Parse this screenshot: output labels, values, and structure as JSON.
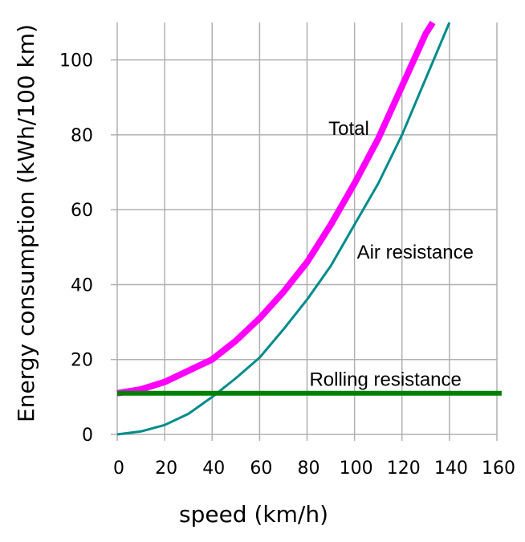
{
  "chart_data": {
    "type": "line",
    "xlabel": "speed (km/h)",
    "ylabel": "Energy consumption (kWh/100 km)",
    "xlim": [
      0,
      160
    ],
    "ylim": [
      0,
      110
    ],
    "grid": true,
    "x_ticks": [
      "0",
      "20",
      "40",
      "60",
      "80",
      "100",
      "120",
      "140",
      "160"
    ],
    "y_ticks": [
      "0",
      "20",
      "40",
      "60",
      "80",
      "100"
    ],
    "series": [
      {
        "name": "Total",
        "color": "#ff00ff",
        "x": [
          0,
          10,
          20,
          30,
          40,
          50,
          60,
          70,
          80,
          90,
          100,
          110,
          120,
          130,
          133
        ],
        "y": [
          11,
          12,
          14,
          17,
          20,
          25,
          31,
          38,
          46,
          56,
          67,
          79,
          93,
          107,
          110
        ]
      },
      {
        "name": "Air resistance",
        "color": "#008b8b",
        "x": [
          0,
          10,
          20,
          30,
          40,
          50,
          60,
          70,
          80,
          90,
          100,
          110,
          120,
          130,
          140
        ],
        "y": [
          0,
          0.8,
          2.5,
          5.5,
          10,
          15,
          20.5,
          28,
          36,
          45,
          56,
          67,
          80,
          95,
          110
        ]
      },
      {
        "name": "Rolling resistance",
        "color": "#008000",
        "x": [
          0,
          162
        ],
        "y": [
          11,
          11
        ]
      }
    ],
    "annotations": [
      {
        "text": "Total",
        "x": 89,
        "y": 80
      },
      {
        "text": "Air resistance",
        "x": 101,
        "y": 47
      },
      {
        "text": "Rolling resistance",
        "x": 81,
        "y": 13
      }
    ]
  }
}
